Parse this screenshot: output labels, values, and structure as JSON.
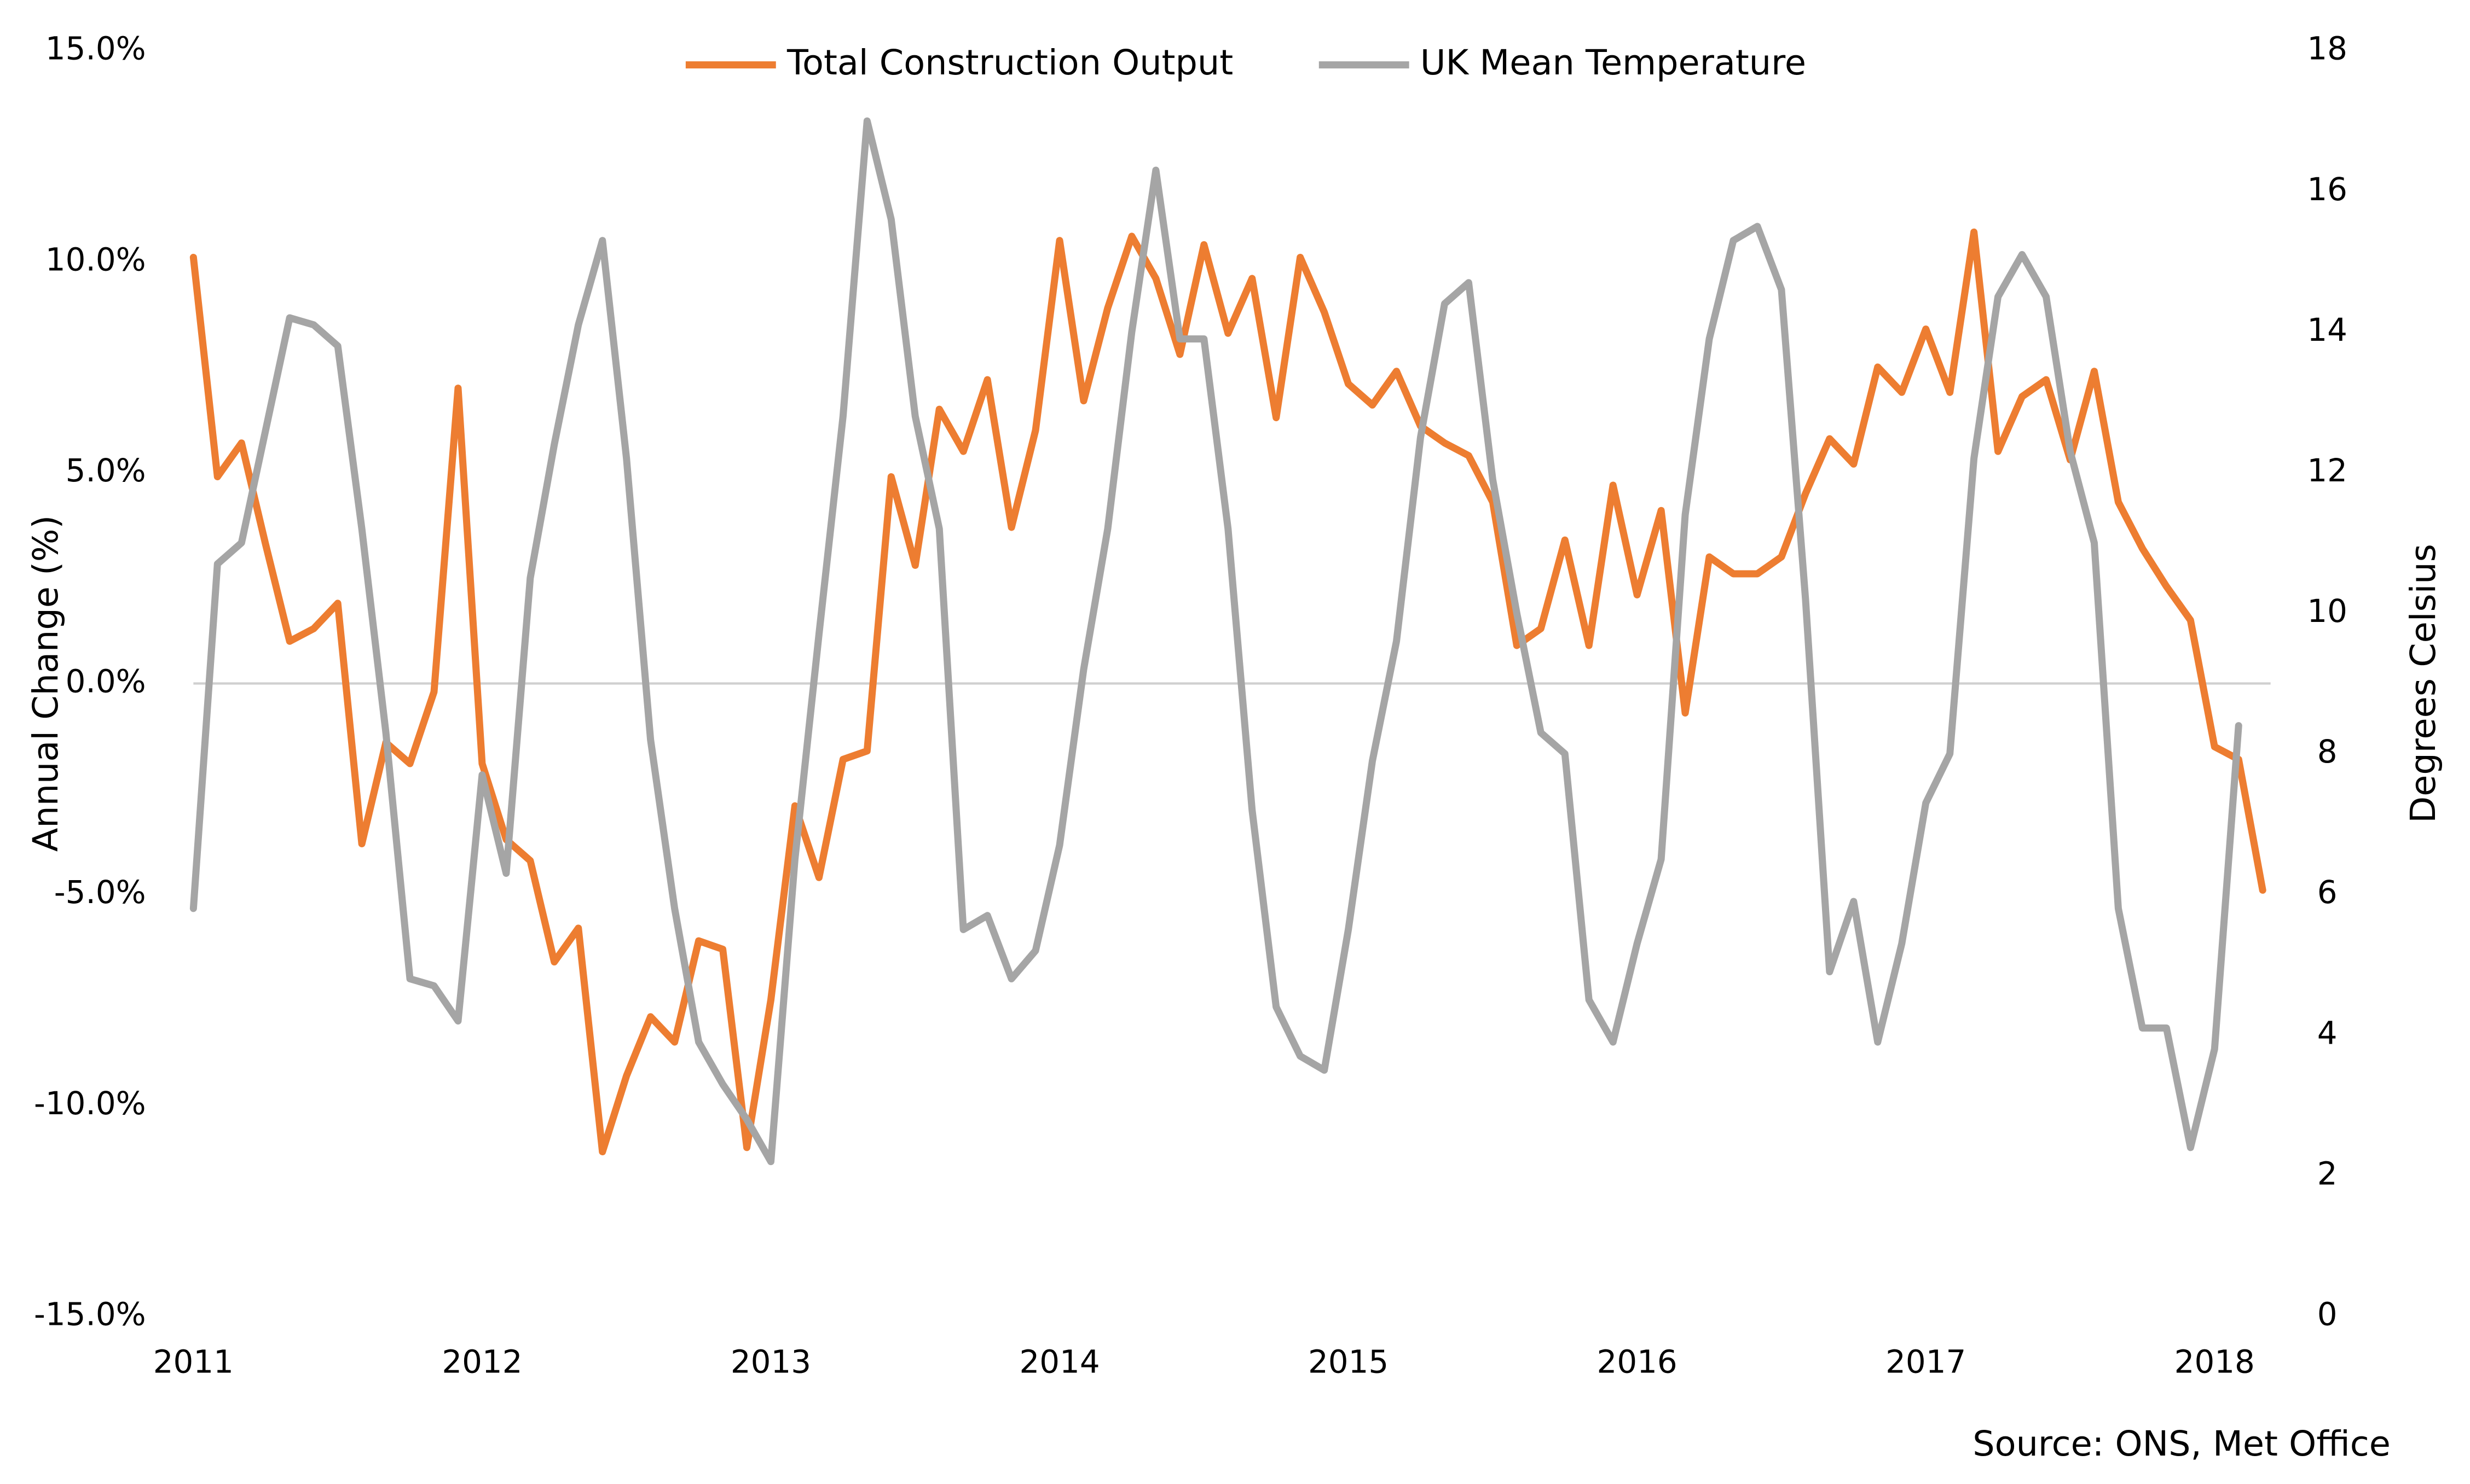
{
  "chart_data": {
    "type": "line",
    "categories": [
      "2011",
      null,
      null,
      null,
      null,
      null,
      null,
      null,
      null,
      null,
      null,
      null,
      "2012",
      null,
      null,
      null,
      null,
      null,
      null,
      null,
      null,
      null,
      null,
      null,
      "2013",
      null,
      null,
      null,
      null,
      null,
      null,
      null,
      null,
      null,
      null,
      null,
      "2014",
      null,
      null,
      null,
      null,
      null,
      null,
      null,
      null,
      null,
      null,
      null,
      "2015",
      null,
      null,
      null,
      null,
      null,
      null,
      null,
      null,
      null,
      null,
      null,
      "2016",
      null,
      null,
      null,
      null,
      null,
      null,
      null,
      null,
      null,
      null,
      null,
      "2017",
      null,
      null,
      null,
      null,
      null,
      null,
      null,
      null,
      null,
      null,
      null,
      "2018",
      null,
      null
    ],
    "series": [
      {
        "name": "Total Construction Output",
        "color": "#ed7d31",
        "values": [
          10.1,
          4.9,
          5.7,
          3.3,
          1.0,
          1.3,
          1.9,
          -3.8,
          -1.4,
          -1.9,
          -0.2,
          7.0,
          -1.9,
          -3.7,
          -4.2,
          -6.6,
          -5.8,
          -11.1,
          -9.3,
          -7.9,
          -8.5,
          -6.1,
          -6.3,
          -11.0,
          -7.5,
          -2.9,
          -4.6,
          -1.8,
          -1.6,
          4.9,
          2.8,
          6.5,
          5.5,
          7.2,
          3.7,
          6.0,
          10.5,
          6.7,
          8.9,
          10.6,
          9.6,
          7.8,
          10.4,
          8.3,
          9.6,
          6.3,
          10.1,
          8.8,
          7.1,
          6.6,
          7.4,
          6.1,
          5.7,
          5.4,
          4.3,
          0.9,
          1.3,
          3.4,
          0.9,
          4.7,
          2.1,
          4.1,
          -0.7,
          3.0,
          2.6,
          2.6,
          3.0,
          4.5,
          5.8,
          5.2,
          7.5,
          6.9,
          8.4,
          6.9,
          10.7,
          5.5,
          6.8,
          7.2,
          5.3,
          7.4,
          4.3,
          3.2,
          2.3,
          1.5,
          -1.5,
          -1.8,
          -4.9
        ]
      },
      {
        "name": "UK Mean Temperature",
        "color": "#a5a5a5",
        "axis": "y2",
        "values": [
          5.8,
          10.7,
          11.0,
          12.6,
          14.2,
          14.1,
          13.8,
          11.2,
          8.3,
          4.8,
          4.7,
          4.2,
          7.7,
          6.3,
          10.5,
          12.4,
          14.1,
          15.3,
          12.2,
          8.2,
          5.8,
          3.9,
          3.3,
          2.8,
          2.2,
          6.5,
          9.7,
          12.8,
          17.0,
          15.6,
          12.8,
          11.2,
          5.5,
          5.7,
          4.8,
          5.2,
          6.7,
          9.2,
          11.2,
          14.0,
          16.3,
          13.9,
          13.9,
          11.2,
          7.2,
          4.4,
          3.7,
          3.5,
          5.5,
          7.9,
          9.6,
          12.5,
          14.4,
          14.7,
          11.9,
          10.0,
          8.3,
          8.0,
          4.5,
          3.9,
          5.3,
          6.5,
          11.4,
          13.9,
          15.3,
          15.5,
          14.6,
          10.2,
          4.9,
          5.9,
          3.9,
          5.3,
          7.3,
          8.0,
          12.2,
          14.5,
          15.1,
          14.5,
          12.3,
          11.0,
          5.8,
          4.1,
          4.1,
          2.4,
          3.8,
          8.4,
          null
        ]
      }
    ],
    "ylabel": "Annual Change (%)",
    "y2label": "Degrees Celsius",
    "ylim": [
      -15,
      15
    ],
    "yticks": [
      {
        "value": -15,
        "label": "-15.0%"
      },
      {
        "value": -10,
        "label": "-10.0%"
      },
      {
        "value": -5,
        "label": "-5.0%"
      },
      {
        "value": 0,
        "label": "0.0%"
      },
      {
        "value": 5,
        "label": "5.0%"
      },
      {
        "value": 10,
        "label": "10.0%"
      },
      {
        "value": 15,
        "label": "15.0%"
      }
    ],
    "y2lim": [
      0,
      18
    ],
    "y2ticks": [
      0,
      2,
      4,
      6,
      8,
      10,
      12,
      14,
      16,
      18
    ],
    "legend": "top",
    "source": "Source: ONS, Met Office"
  }
}
